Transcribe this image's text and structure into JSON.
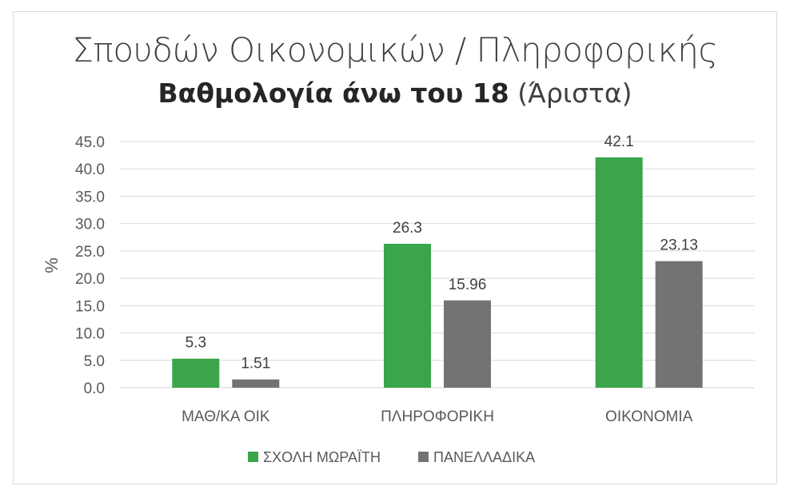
{
  "chart_data": {
    "type": "bar",
    "title": "Σπουδών Οικονομικών / Πληροφορικής",
    "subtitle_bold": "Βαθμολογία άνω του 18",
    "subtitle_rest": "(Άριστα)",
    "ylabel": "%",
    "xlabel": "",
    "ylim": [
      0,
      45
    ],
    "ytick_step": 5,
    "yticks": [
      "0.0",
      "5.0",
      "10.0",
      "15.0",
      "20.0",
      "25.0",
      "30.0",
      "35.0",
      "40.0",
      "45.0"
    ],
    "categories": [
      "ΜΑΘ/ΚΑ ΟΙΚ",
      "ΠΛΗΡΟΦΟΡΙΚΗ",
      "ΟΙΚΟΝΟΜΙΑ"
    ],
    "series": [
      {
        "name": "ΣΧΟΛΗ ΜΩΡΑΪΤΗ",
        "values": [
          5.3,
          26.3,
          42.1
        ],
        "labels": [
          "5.3",
          "26.3",
          "42.1"
        ],
        "color": "#3aa54a"
      },
      {
        "name": "ΠΑΝΕΛΛΑΔΙΚΑ",
        "values": [
          1.51,
          15.96,
          23.13
        ],
        "labels": [
          "1.51",
          "15.96",
          "23.13"
        ],
        "color": "#737373"
      }
    ],
    "grid": true,
    "legend_position": "bottom"
  }
}
